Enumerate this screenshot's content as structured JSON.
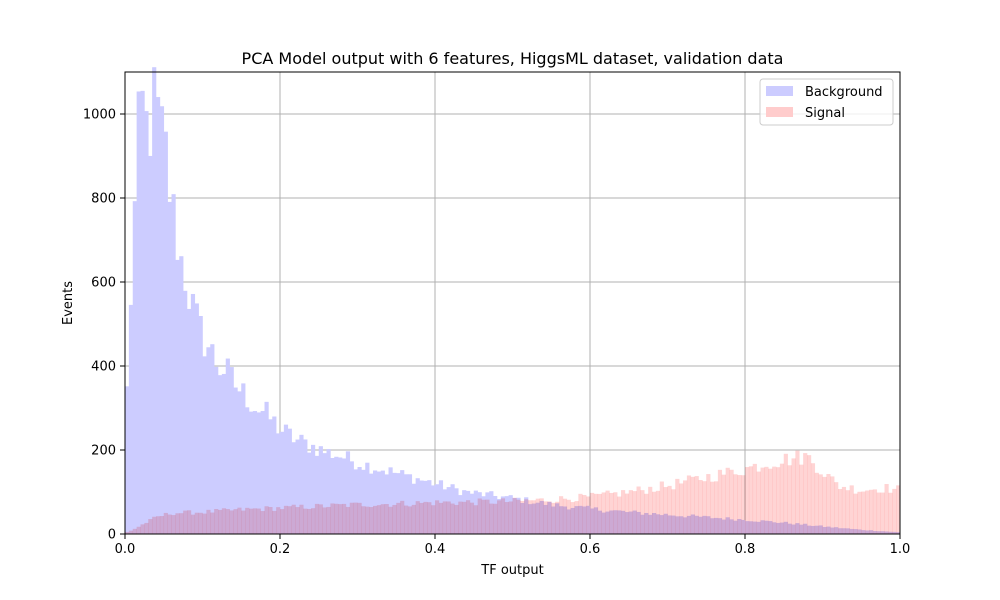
{
  "chart_data": {
    "type": "histogram",
    "title": "PCA Model output with 6 features, HiggsML dataset, validation data",
    "xlabel": "TF output",
    "ylabel": "Events",
    "xlim": [
      0,
      1
    ],
    "ylim": [
      0,
      1100
    ],
    "x_ticks": [
      0.0,
      0.2,
      0.4,
      0.6,
      0.8,
      1.0
    ],
    "x_tick_labels": [
      "0.0",
      "0.2",
      "0.4",
      "0.6",
      "0.8",
      "1.0"
    ],
    "y_ticks": [
      0,
      200,
      400,
      600,
      800,
      1000
    ],
    "y_tick_labels": [
      "0",
      "200",
      "400",
      "600",
      "800",
      "1000"
    ],
    "grid": true,
    "legend_position": "top-right",
    "bin_range": [
      0,
      1
    ],
    "bin_count": 200,
    "series": [
      {
        "name": "Background",
        "color": "#ccccff",
        "key_points": [
          [
            0.0,
            210
          ],
          [
            0.005,
            470
          ],
          [
            0.01,
            670
          ],
          [
            0.015,
            870
          ],
          [
            0.02,
            1030
          ],
          [
            0.025,
            1000
          ],
          [
            0.03,
            940
          ],
          [
            0.035,
            1000
          ],
          [
            0.04,
            1050
          ],
          [
            0.045,
            940
          ],
          [
            0.05,
            960
          ],
          [
            0.055,
            860
          ],
          [
            0.06,
            780
          ],
          [
            0.065,
            740
          ],
          [
            0.07,
            660
          ],
          [
            0.075,
            640
          ],
          [
            0.08,
            590
          ],
          [
            0.09,
            520
          ],
          [
            0.1,
            470
          ],
          [
            0.11,
            440
          ],
          [
            0.12,
            400
          ],
          [
            0.13,
            390
          ],
          [
            0.14,
            360
          ],
          [
            0.15,
            340
          ],
          [
            0.16,
            320
          ],
          [
            0.17,
            300
          ],
          [
            0.18,
            290
          ],
          [
            0.2,
            250
          ],
          [
            0.22,
            225
          ],
          [
            0.24,
            210
          ],
          [
            0.26,
            195
          ],
          [
            0.28,
            185
          ],
          [
            0.3,
            170
          ],
          [
            0.32,
            160
          ],
          [
            0.34,
            150
          ],
          [
            0.36,
            140
          ],
          [
            0.38,
            130
          ],
          [
            0.4,
            120
          ],
          [
            0.42,
            110
          ],
          [
            0.44,
            100
          ],
          [
            0.46,
            95
          ],
          [
            0.48,
            90
          ],
          [
            0.5,
            85
          ],
          [
            0.55,
            70
          ],
          [
            0.6,
            60
          ],
          [
            0.65,
            52
          ],
          [
            0.7,
            46
          ],
          [
            0.75,
            40
          ],
          [
            0.8,
            34
          ],
          [
            0.85,
            27
          ],
          [
            0.9,
            18
          ],
          [
            0.95,
            10
          ],
          [
            1.0,
            4
          ]
        ]
      },
      {
        "name": "Signal",
        "color": "#ffcccc",
        "key_points": [
          [
            0.0,
            3
          ],
          [
            0.01,
            10
          ],
          [
            0.02,
            20
          ],
          [
            0.03,
            30
          ],
          [
            0.04,
            40
          ],
          [
            0.06,
            50
          ],
          [
            0.1,
            52
          ],
          [
            0.15,
            58
          ],
          [
            0.2,
            62
          ],
          [
            0.25,
            66
          ],
          [
            0.3,
            70
          ],
          [
            0.35,
            72
          ],
          [
            0.4,
            75
          ],
          [
            0.45,
            76
          ],
          [
            0.5,
            78
          ],
          [
            0.55,
            82
          ],
          [
            0.6,
            88
          ],
          [
            0.65,
            100
          ],
          [
            0.7,
            115
          ],
          [
            0.75,
            135
          ],
          [
            0.8,
            155
          ],
          [
            0.83,
            170
          ],
          [
            0.86,
            180
          ],
          [
            0.88,
            185
          ],
          [
            0.9,
            150
          ],
          [
            0.92,
            115
          ],
          [
            0.95,
            105
          ],
          [
            0.98,
            110
          ],
          [
            1.0,
            105
          ]
        ]
      }
    ]
  }
}
